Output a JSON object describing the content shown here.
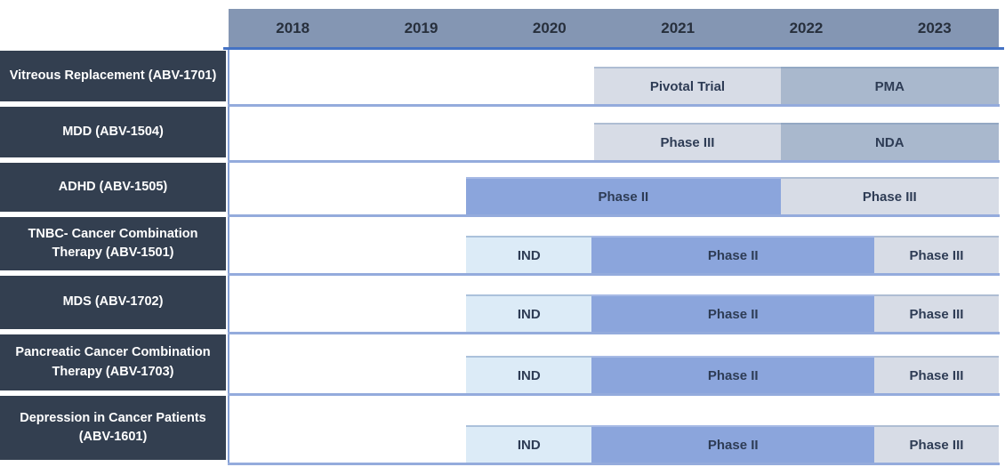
{
  "timeline": {
    "years": [
      "2018",
      "2019",
      "2020",
      "2021",
      "2022",
      "2023"
    ]
  },
  "colors": {
    "header_bg": "#8496b3",
    "year_text": "#272f3c",
    "header_underline": "#4472c4",
    "program_cell_bg": "#333f50",
    "program_text": "#ffffff",
    "separator_line": "#94abdc",
    "left_border_line": "#85a0d5",
    "bar_text": "#2e3c55",
    "bar_styles": {
      "light": {
        "fill": "#d7dce6",
        "top": "#aebdd3"
      },
      "medium": {
        "fill": "#a9b8cd",
        "top": "#93a8c3"
      },
      "periwinkle": {
        "fill": "#8ba5dc",
        "top": "#a7bae5"
      },
      "pale": {
        "fill": "#dcebf7",
        "top": "#abc1db"
      }
    }
  },
  "chart_data": {
    "type": "bar",
    "variant": "gantt-timeline",
    "title": "",
    "x_axis": {
      "tick_labels": [
        "2018",
        "2019",
        "2020",
        "2021",
        "2022",
        "2023"
      ],
      "range": [
        2018,
        2024
      ],
      "grid": false
    },
    "legend": "none",
    "rows": [
      {
        "program": "Vitreous Replacement (ABV-1701)",
        "segments": [
          {
            "label": "Pivotal Trial",
            "style": "light",
            "start": 2020.85,
            "end": 2022.3
          },
          {
            "label": "PMA",
            "style": "medium",
            "start": 2022.3,
            "end": 2024.0
          }
        ]
      },
      {
        "program": "MDD (ABV-1504)",
        "segments": [
          {
            "label": "Phase III",
            "style": "light",
            "start": 2020.85,
            "end": 2022.3
          },
          {
            "label": "NDA",
            "style": "medium",
            "start": 2022.3,
            "end": 2024.0
          }
        ]
      },
      {
        "program": "ADHD (ABV-1505)",
        "segments": [
          {
            "label": "Phase II",
            "style": "periwinkle",
            "start": 2019.85,
            "end": 2022.3
          },
          {
            "label": "Phase III",
            "style": "light",
            "start": 2022.3,
            "end": 2024.0
          }
        ]
      },
      {
        "program": "TNBC- Cancer Combination Therapy (ABV-1501)",
        "segments": [
          {
            "label": "IND",
            "style": "pale",
            "start": 2019.85,
            "end": 2020.83
          },
          {
            "label": "Phase II",
            "style": "periwinkle",
            "start": 2020.83,
            "end": 2023.03
          },
          {
            "label": "Phase III",
            "style": "light",
            "start": 2023.03,
            "end": 2024.0
          }
        ]
      },
      {
        "program": "MDS (ABV-1702)",
        "segments": [
          {
            "label": "IND",
            "style": "pale",
            "start": 2019.85,
            "end": 2020.83
          },
          {
            "label": "Phase II",
            "style": "periwinkle",
            "start": 2020.83,
            "end": 2023.03
          },
          {
            "label": "Phase III",
            "style": "light",
            "start": 2023.03,
            "end": 2024.0
          }
        ]
      },
      {
        "program": "Pancreatic Cancer Combination Therapy (ABV-1703)",
        "segments": [
          {
            "label": "IND",
            "style": "pale",
            "start": 2019.85,
            "end": 2020.83
          },
          {
            "label": "Phase II",
            "style": "periwinkle",
            "start": 2020.83,
            "end": 2023.03
          },
          {
            "label": "Phase III",
            "style": "light",
            "start": 2023.03,
            "end": 2024.0
          }
        ]
      },
      {
        "program": "Depression in Cancer Patients (ABV-1601)",
        "segments": [
          {
            "label": "IND",
            "style": "pale",
            "start": 2019.85,
            "end": 2020.83
          },
          {
            "label": "Phase II",
            "style": "periwinkle",
            "start": 2020.83,
            "end": 2023.03
          },
          {
            "label": "Phase III",
            "style": "light",
            "start": 2023.03,
            "end": 2024.0
          }
        ]
      }
    ]
  }
}
